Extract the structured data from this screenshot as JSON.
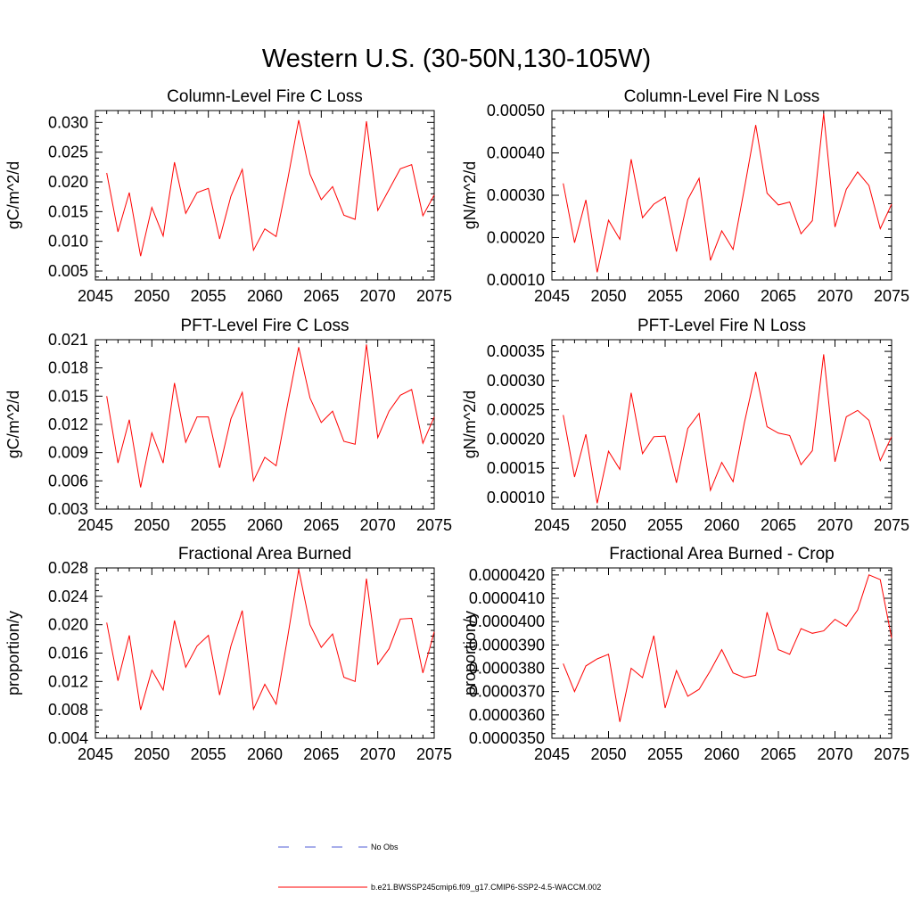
{
  "title": "Western U.S. (30-50N,130-105W)",
  "colors": {
    "series": "#ff0000",
    "obs": "#4f5bd5",
    "axis": "#000000"
  },
  "legend": {
    "entries": [
      {
        "label": "No Obs",
        "style": "dashed",
        "color": "#4f5bd5"
      },
      {
        "label": "b.e21.BWSSP245cmip6.f09_g17.CMIP6-SSP2-4.5-WACCM.002",
        "style": "solid",
        "color": "#ff0000"
      }
    ]
  },
  "chart_data": [
    {
      "type": "line",
      "title": "Column-Level Fire C Loss",
      "ylabel": "gC/m^2/d",
      "xlim": [
        2045,
        2075
      ],
      "ylim": [
        0.0035,
        0.032
      ],
      "xticks": [
        2045,
        2050,
        2055,
        2060,
        2065,
        2070,
        2075
      ],
      "yticks": [
        0.005,
        0.01,
        0.015,
        0.02,
        0.025,
        0.03
      ],
      "ytick_labels": [
        "0.005",
        "0.010",
        "0.015",
        "0.020",
        "0.025",
        "0.030"
      ],
      "x": [
        2046,
        2047,
        2048,
        2049,
        2050,
        2051,
        2052,
        2053,
        2054,
        2055,
        2056,
        2057,
        2058,
        2059,
        2060,
        2061,
        2062,
        2063,
        2064,
        2065,
        2066,
        2067,
        2068,
        2069,
        2070,
        2071,
        2072,
        2073,
        2074,
        2075
      ],
      "values": [
        0.0215,
        0.0116,
        0.0182,
        0.0075,
        0.0157,
        0.0109,
        0.0233,
        0.0147,
        0.0182,
        0.0189,
        0.0104,
        0.0176,
        0.0221,
        0.0085,
        0.0121,
        0.0108,
        0.0201,
        0.0304,
        0.0213,
        0.017,
        0.0192,
        0.0144,
        0.0137,
        0.0302,
        0.0152,
        0.0187,
        0.0222,
        0.0229,
        0.0143,
        0.0178
      ]
    },
    {
      "type": "line",
      "title": "Column-Level Fire N Loss",
      "ylabel": "gN/m^2/d",
      "xlim": [
        2045,
        2075
      ],
      "ylim": [
        0.0001,
        0.0005
      ],
      "xticks": [
        2045,
        2050,
        2055,
        2060,
        2065,
        2070,
        2075
      ],
      "yticks": [
        0.0001,
        0.0002,
        0.0003,
        0.0004,
        0.0005
      ],
      "ytick_labels": [
        "0.00010",
        "0.00020",
        "0.00030",
        "0.00040",
        "0.00050"
      ],
      "x": [
        2046,
        2047,
        2048,
        2049,
        2050,
        2051,
        2052,
        2053,
        2054,
        2055,
        2056,
        2057,
        2058,
        2059,
        2060,
        2061,
        2062,
        2063,
        2064,
        2065,
        2066,
        2067,
        2068,
        2069,
        2070,
        2071,
        2072,
        2073,
        2074,
        2075
      ],
      "values": [
        0.000328,
        0.000188,
        0.000289,
        0.000118,
        0.000241,
        0.000196,
        0.000385,
        0.000247,
        0.000279,
        0.000296,
        0.000167,
        0.00029,
        0.00034,
        0.000146,
        0.000216,
        0.000172,
        0.000316,
        0.000466,
        0.000305,
        0.000277,
        0.000284,
        0.000209,
        0.00024,
        0.000493,
        0.000225,
        0.000314,
        0.000355,
        0.000323,
        0.000221,
        0.000279
      ]
    },
    {
      "type": "line",
      "title": "PFT-Level Fire C Loss",
      "ylabel": "gC/m^2/d",
      "xlim": [
        2045,
        2075
      ],
      "ylim": [
        0.003,
        0.021
      ],
      "xticks": [
        2045,
        2050,
        2055,
        2060,
        2065,
        2070,
        2075
      ],
      "yticks": [
        0.003,
        0.006,
        0.009,
        0.012,
        0.015,
        0.018,
        0.021
      ],
      "ytick_labels": [
        "0.003",
        "0.006",
        "0.009",
        "0.012",
        "0.015",
        "0.018",
        "0.021"
      ],
      "x": [
        2046,
        2047,
        2048,
        2049,
        2050,
        2051,
        2052,
        2053,
        2054,
        2055,
        2056,
        2057,
        2058,
        2059,
        2060,
        2061,
        2062,
        2063,
        2064,
        2065,
        2066,
        2067,
        2068,
        2069,
        2070,
        2071,
        2072,
        2073,
        2074,
        2075
      ],
      "values": [
        0.015,
        0.0079,
        0.0125,
        0.0053,
        0.0111,
        0.0079,
        0.0164,
        0.0101,
        0.0128,
        0.0128,
        0.0074,
        0.0126,
        0.0154,
        0.006,
        0.0085,
        0.0076,
        0.014,
        0.0202,
        0.0148,
        0.0122,
        0.0134,
        0.0102,
        0.0099,
        0.0205,
        0.0106,
        0.0134,
        0.0151,
        0.0157,
        0.01,
        0.0128
      ]
    },
    {
      "type": "line",
      "title": "PFT-Level Fire N Loss",
      "ylabel": "gN/m^2/d",
      "xlim": [
        2045,
        2075
      ],
      "ylim": [
        8e-05,
        0.00037
      ],
      "xticks": [
        2045,
        2050,
        2055,
        2060,
        2065,
        2070,
        2075
      ],
      "yticks": [
        0.0001,
        0.00015,
        0.0002,
        0.00025,
        0.0003,
        0.00035
      ],
      "ytick_labels": [
        "0.00010",
        "0.00015",
        "0.00020",
        "0.00025",
        "0.00030",
        "0.00035"
      ],
      "x": [
        2046,
        2047,
        2048,
        2049,
        2050,
        2051,
        2052,
        2053,
        2054,
        2055,
        2056,
        2057,
        2058,
        2059,
        2060,
        2061,
        2062,
        2063,
        2064,
        2065,
        2066,
        2067,
        2068,
        2069,
        2070,
        2071,
        2072,
        2073,
        2074,
        2075
      ],
      "values": [
        0.000241,
        0.000135,
        0.000208,
        9e-05,
        0.000179,
        0.000148,
        0.000279,
        0.000175,
        0.000204,
        0.000205,
        0.000125,
        0.000218,
        0.000244,
        0.000112,
        0.00016,
        0.000127,
        0.000228,
        0.000315,
        0.000221,
        0.00021,
        0.000206,
        0.000156,
        0.00018,
        0.000345,
        0.000161,
        0.000238,
        0.000249,
        0.000232,
        0.000163,
        0.000204
      ]
    },
    {
      "type": "line",
      "title": "Fractional Area Burned",
      "ylabel": "proportion/y",
      "xlim": [
        2045,
        2075
      ],
      "ylim": [
        0.004,
        0.028
      ],
      "xticks": [
        2045,
        2050,
        2055,
        2060,
        2065,
        2070,
        2075
      ],
      "yticks": [
        0.004,
        0.008,
        0.012,
        0.016,
        0.02,
        0.024,
        0.028
      ],
      "ytick_labels": [
        "0.004",
        "0.008",
        "0.012",
        "0.016",
        "0.020",
        "0.024",
        "0.028"
      ],
      "x": [
        2046,
        2047,
        2048,
        2049,
        2050,
        2051,
        2052,
        2053,
        2054,
        2055,
        2056,
        2057,
        2058,
        2059,
        2060,
        2061,
        2062,
        2063,
        2064,
        2065,
        2066,
        2067,
        2068,
        2069,
        2070,
        2071,
        2072,
        2073,
        2074,
        2075
      ],
      "values": [
        0.0203,
        0.0121,
        0.0185,
        0.008,
        0.0136,
        0.0108,
        0.0206,
        0.014,
        0.017,
        0.0185,
        0.0101,
        0.017,
        0.022,
        0.0081,
        0.0116,
        0.0088,
        0.018,
        0.0278,
        0.02,
        0.0168,
        0.0187,
        0.0126,
        0.012,
        0.0265,
        0.0144,
        0.0166,
        0.0208,
        0.0209,
        0.0132,
        0.019
      ]
    },
    {
      "type": "line",
      "title": "Fractional Area Burned - Crop",
      "ylabel": "proportion/y",
      "xlim": [
        2045,
        2075
      ],
      "ylim": [
        3.5e-05,
        4.23e-05
      ],
      "xticks": [
        2045,
        2050,
        2055,
        2060,
        2065,
        2070,
        2075
      ],
      "yticks": [
        3.5e-05,
        3.6e-05,
        3.7e-05,
        3.8e-05,
        3.9e-05,
        4e-05,
        4.1e-05,
        4.2e-05
      ],
      "ytick_labels": [
        "0.0000350",
        "0.0000360",
        "0.0000370",
        "0.0000380",
        "0.0000390",
        "0.0000400",
        "0.0000410",
        "0.0000420"
      ],
      "x": [
        2046,
        2047,
        2048,
        2049,
        2050,
        2051,
        2052,
        2053,
        2054,
        2055,
        2056,
        2057,
        2058,
        2059,
        2060,
        2061,
        2062,
        2063,
        2064,
        2065,
        2066,
        2067,
        2068,
        2069,
        2070,
        2071,
        2072,
        2073,
        2074,
        2075
      ],
      "values": [
        3.82e-05,
        3.7e-05,
        3.81e-05,
        3.84e-05,
        3.86e-05,
        3.57e-05,
        3.8e-05,
        3.76e-05,
        3.94e-05,
        3.63e-05,
        3.79e-05,
        3.68e-05,
        3.71e-05,
        3.79e-05,
        3.88e-05,
        3.78e-05,
        3.76e-05,
        3.77e-05,
        4.04e-05,
        3.88e-05,
        3.86e-05,
        3.97e-05,
        3.95e-05,
        3.96e-05,
        4.01e-05,
        3.98e-05,
        4.05e-05,
        4.2e-05,
        4.18e-05,
        3.93e-05
      ]
    }
  ]
}
